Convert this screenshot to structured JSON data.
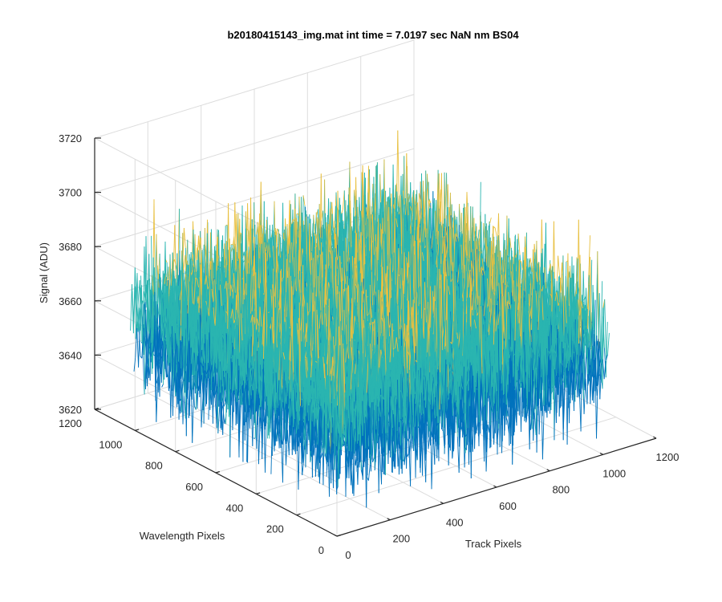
{
  "chart_data": {
    "type": "surface",
    "title": "b20180415143_img.mat int time = 7.0197 sec  NaN nm BS04",
    "xlabel": "Track Pixels",
    "ylabel": "Wavelength Pixels",
    "zlabel": "Signal (ADU)",
    "xlim": [
      0,
      1200
    ],
    "ylim": [
      0,
      1200
    ],
    "zlim": [
      3620,
      3720
    ],
    "xticks": [
      "0",
      "200",
      "400",
      "600",
      "800",
      "1000",
      "1200"
    ],
    "yticks": [
      "0",
      "200",
      "400",
      "600",
      "800",
      "1000",
      "1200"
    ],
    "zticks": [
      "3620",
      "3640",
      "3660",
      "3680",
      "3700",
      "3720"
    ],
    "data_extent": {
      "x": [
        1,
        1024
      ],
      "y": [
        1,
        1024
      ]
    },
    "signal_mean": 3660,
    "signal_range": [
      3625,
      3705
    ],
    "grid": true,
    "colormap": "parula",
    "colors": {
      "low": "#0072bd",
      "mid": "#2ab5b0",
      "high": "#e8c040"
    }
  }
}
